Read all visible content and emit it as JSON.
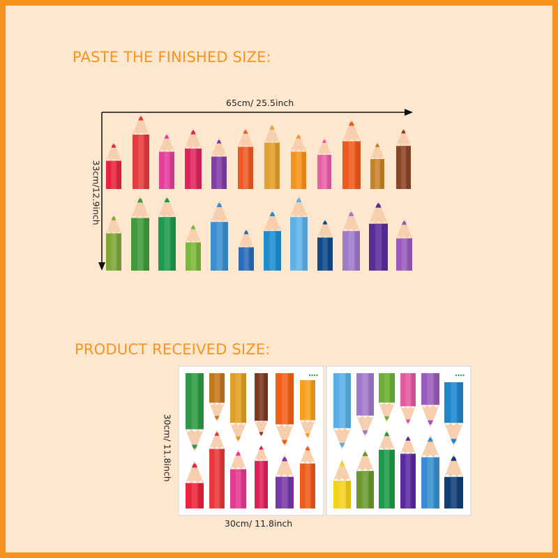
{
  "finished": {
    "heading": "PASTE THE FINISHED SIZE:",
    "width_label": "65cm/ 25.5inch",
    "height_label": "33cm/12.9inch",
    "top_row_colors": [
      "#e8253c",
      "#e63b3f",
      "#e2409a",
      "#e1245e",
      "#7f3fa6",
      "#ee5a24",
      "#e3a02c",
      "#f7941d",
      "#e860a6",
      "#f05a1e",
      "#c7822c",
      "#8a4628"
    ],
    "bottom_row_colors": [
      "#7ea83a",
      "#3f9a3c",
      "#1d9a50",
      "#7cb83a",
      "#3b8fd0",
      "#2a6cb8",
      "#1f8fd0",
      "#5cb3e8",
      "#0f4a8a",
      "#a07ac8",
      "#5a2c9a",
      "#9a5cbc"
    ]
  },
  "received": {
    "heading": "PRODUCT RECEIVED SIZE:",
    "width_label": "30cm/ 11.8inch",
    "height_label": "30cm/ 11.8inch",
    "left_sheet_top_colors": [
      "#2f9a45",
      "#c6781f",
      "#e0a028",
      "#7a3a20",
      "#f06018",
      "#f7a01a"
    ],
    "left_sheet_bottom_colors": [
      "#e8253c",
      "#e8383c",
      "#e43a90",
      "#e0205a",
      "#7a38a8",
      "#ee5a1a"
    ],
    "right_sheet_top_colors": [
      "#5ab0e6",
      "#a07ac8",
      "#6fae38",
      "#e25aa0",
      "#9a5cbc",
      "#1e86cc"
    ],
    "right_sheet_bottom_colors": [
      "#f4d21e",
      "#6a9a30",
      "#1d9a48",
      "#5a2a9e",
      "#3a8ed0",
      "#0f3f7a"
    ]
  },
  "colors": {
    "accent": "#f7931e",
    "background": "#fde8cf",
    "wood": "#f8cfae"
  }
}
